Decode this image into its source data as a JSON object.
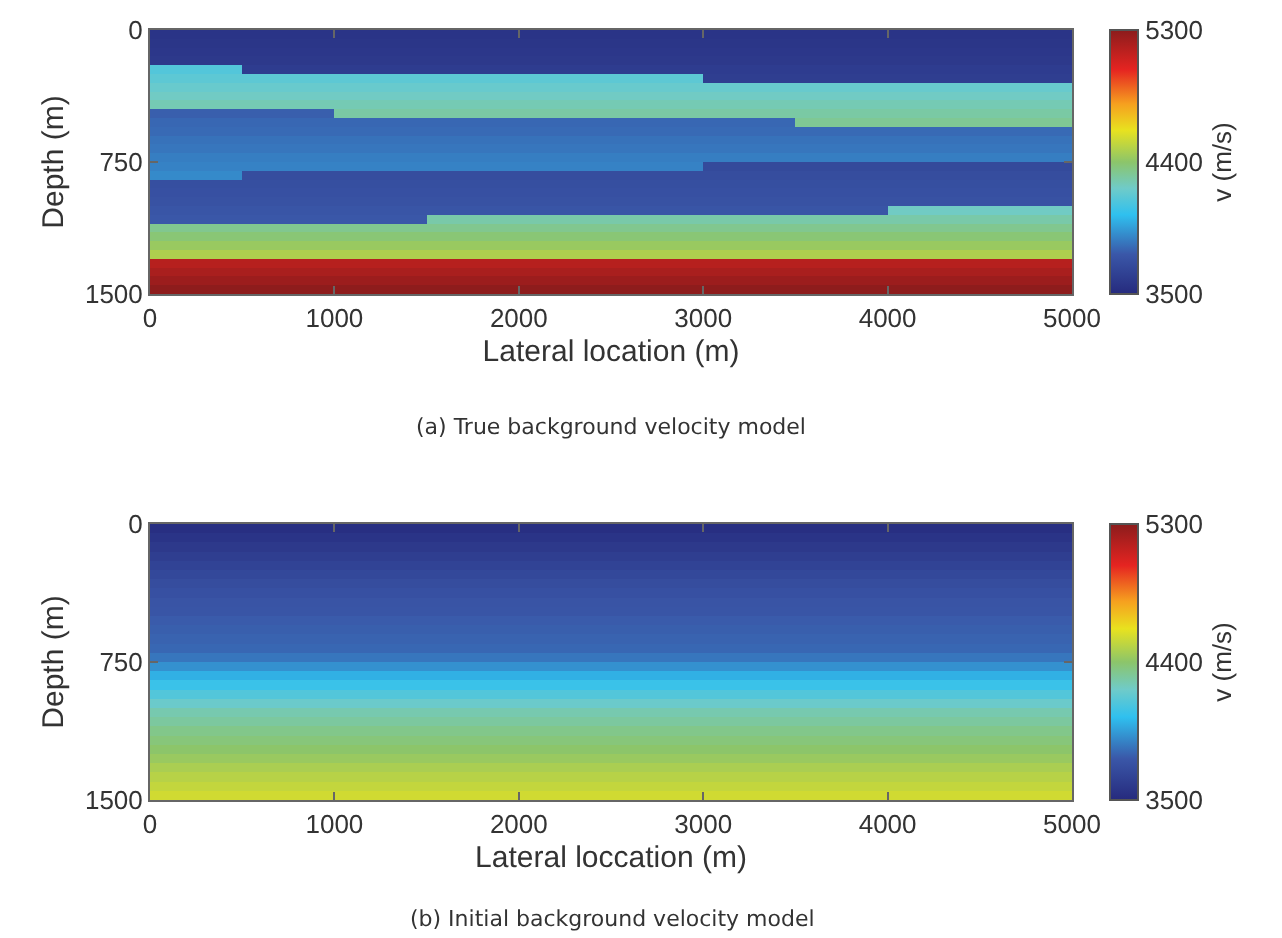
{
  "chart_data": [
    {
      "type": "heatmap",
      "xlabel": "Lateral location (m)",
      "ylabel": "Depth (m)",
      "clabel": "v (m/s)",
      "annotations": [
        "(a) True background velocity model"
      ],
      "x": [
        250,
        750,
        1250,
        1750,
        2250,
        2750,
        3250,
        3750,
        4250,
        4750
      ],
      "y": [
        25,
        75,
        125,
        175,
        225,
        275,
        325,
        375,
        425,
        475,
        525,
        575,
        625,
        675,
        725,
        775,
        825,
        875,
        925,
        975,
        1025,
        1075,
        1125,
        1175,
        1225,
        1275,
        1325,
        1375,
        1425,
        1475
      ],
      "xlim": [
        0,
        5000
      ],
      "xticks": [
        0,
        1000,
        2000,
        3000,
        4000,
        5000
      ],
      "ylim": [
        1500,
        0
      ],
      "yticks": [
        0,
        750,
        1500
      ],
      "clim": [
        3500,
        5300
      ],
      "cticks": [
        3500,
        4400,
        5300
      ],
      "cells": [
        [
          3560,
          3560,
          3560,
          3560,
          3560,
          3560,
          3560,
          3560,
          3560,
          3560
        ],
        [
          3570,
          3570,
          3570,
          3570,
          3570,
          3570,
          3570,
          3570,
          3570,
          3570
        ],
        [
          3580,
          3580,
          3580,
          3580,
          3580,
          3580,
          3580,
          3580,
          3580,
          3580
        ],
        [
          3590,
          3590,
          3590,
          3590,
          3590,
          3590,
          3590,
          3590,
          3590,
          3590
        ],
        [
          4140,
          3610,
          3610,
          3610,
          3610,
          3610,
          3610,
          3610,
          3610,
          3610
        ],
        [
          4170,
          4170,
          4170,
          4170,
          4170,
          4170,
          3620,
          3620,
          3620,
          3620
        ],
        [
          4200,
          4200,
          4200,
          4200,
          4200,
          4200,
          4200,
          4200,
          4200,
          4200
        ],
        [
          4230,
          4230,
          4230,
          4230,
          4230,
          4230,
          4230,
          4230,
          4230,
          4230
        ],
        [
          4260,
          4260,
          4260,
          4260,
          4260,
          4260,
          4260,
          4260,
          4260,
          4260
        ],
        [
          3790,
          3790,
          4290,
          4290,
          4290,
          4290,
          4290,
          4290,
          4290,
          4290
        ],
        [
          3810,
          3810,
          3810,
          3810,
          3810,
          3810,
          3810,
          4320,
          4320,
          4320
        ],
        [
          3820,
          3820,
          3820,
          3820,
          3820,
          3820,
          3820,
          3820,
          3820,
          3820
        ],
        [
          3840,
          3840,
          3840,
          3840,
          3840,
          3840,
          3840,
          3840,
          3840,
          3840
        ],
        [
          3850,
          3850,
          3850,
          3850,
          3850,
          3850,
          3850,
          3850,
          3850,
          3850
        ],
        [
          3870,
          3870,
          3870,
          3870,
          3870,
          3870,
          3870,
          3870,
          3870,
          3870
        ],
        [
          3880,
          3880,
          3880,
          3880,
          3880,
          3880,
          3690,
          3690,
          3690,
          3690
        ],
        [
          3900,
          3710,
          3710,
          3710,
          3710,
          3710,
          3710,
          3710,
          3710,
          3710
        ],
        [
          3720,
          3720,
          3720,
          3720,
          3720,
          3720,
          3720,
          3720,
          3720,
          3720
        ],
        [
          3730,
          3730,
          3730,
          3730,
          3730,
          3730,
          3730,
          3730,
          3730,
          3730
        ],
        [
          3740,
          3740,
          3740,
          3740,
          3740,
          3740,
          3740,
          3740,
          3740,
          3740
        ],
        [
          3760,
          3760,
          3760,
          3760,
          3760,
          3760,
          3760,
          3760,
          4230,
          4230
        ],
        [
          3770,
          3770,
          3770,
          4280,
          4280,
          4280,
          4280,
          4280,
          4280,
          4280
        ],
        [
          4330,
          4330,
          4330,
          4330,
          4330,
          4330,
          4330,
          4330,
          4330,
          4330
        ],
        [
          4380,
          4380,
          4380,
          4380,
          4380,
          4380,
          4380,
          4380,
          4380,
          4380
        ],
        [
          4430,
          4430,
          4430,
          4430,
          4430,
          4430,
          4430,
          4430,
          4430,
          4430
        ],
        [
          4480,
          4480,
          4480,
          4480,
          4480,
          4480,
          4480,
          4480,
          4480,
          4480
        ],
        [
          5170,
          5170,
          5170,
          5170,
          5170,
          5170,
          5170,
          5170,
          5170,
          5170
        ],
        [
          5210,
          5210,
          5210,
          5210,
          5210,
          5210,
          5210,
          5210,
          5210,
          5210
        ],
        [
          5250,
          5250,
          5250,
          5250,
          5250,
          5250,
          5250,
          5250,
          5250,
          5250
        ],
        [
          5290,
          5290,
          5290,
          5290,
          5290,
          5290,
          5290,
          5290,
          5290,
          5290
        ]
      ]
    },
    {
      "type": "heatmap",
      "xlabel": "Lateral loccation (m)",
      "ylabel": "Depth (m)",
      "clabel": "v (m/s)",
      "annotations": [
        "(b) Initial background velocity model"
      ],
      "x": [
        250,
        750,
        1250,
        1750,
        2250,
        2750,
        3250,
        3750,
        4250,
        4750
      ],
      "y": [
        25,
        75,
        125,
        175,
        225,
        275,
        325,
        375,
        425,
        475,
        525,
        575,
        625,
        675,
        725,
        775,
        825,
        875,
        925,
        975,
        1025,
        1075,
        1125,
        1175,
        1225,
        1275,
        1325,
        1375,
        1425,
        1475
      ],
      "xlim": [
        0,
        5000
      ],
      "xticks": [
        0,
        1000,
        2000,
        3000,
        4000,
        5000
      ],
      "ylim": [
        1500,
        0
      ],
      "yticks": [
        0,
        750,
        1500
      ],
      "clim": [
        3500,
        5300
      ],
      "cticks": [
        3500,
        4400,
        5300
      ],
      "cells": [
        [
          3530,
          3530,
          3530,
          3530,
          3530,
          3530,
          3530,
          3530,
          3530,
          3530
        ],
        [
          3560,
          3560,
          3560,
          3560,
          3560,
          3560,
          3560,
          3560,
          3560,
          3560
        ],
        [
          3590,
          3590,
          3590,
          3590,
          3590,
          3590,
          3590,
          3590,
          3590,
          3590
        ],
        [
          3620,
          3620,
          3620,
          3620,
          3620,
          3620,
          3620,
          3620,
          3620,
          3620
        ],
        [
          3650,
          3650,
          3650,
          3650,
          3650,
          3650,
          3650,
          3650,
          3650,
          3650
        ],
        [
          3680,
          3680,
          3680,
          3680,
          3680,
          3680,
          3680,
          3680,
          3680,
          3680
        ],
        [
          3710,
          3710,
          3710,
          3710,
          3710,
          3710,
          3710,
          3710,
          3710,
          3710
        ],
        [
          3730,
          3730,
          3730,
          3730,
          3730,
          3730,
          3730,
          3730,
          3730,
          3730
        ],
        [
          3750,
          3750,
          3750,
          3750,
          3750,
          3750,
          3750,
          3750,
          3750,
          3750
        ],
        [
          3760,
          3760,
          3760,
          3760,
          3760,
          3760,
          3760,
          3760,
          3760,
          3760
        ],
        [
          3780,
          3780,
          3780,
          3780,
          3780,
          3780,
          3780,
          3780,
          3780,
          3780
        ],
        [
          3790,
          3790,
          3790,
          3790,
          3790,
          3790,
          3790,
          3790,
          3790,
          3790
        ],
        [
          3800,
          3800,
          3800,
          3800,
          3800,
          3800,
          3800,
          3800,
          3800,
          3800
        ],
        [
          3810,
          3810,
          3810,
          3810,
          3810,
          3810,
          3810,
          3810,
          3810,
          3810
        ],
        [
          3850,
          3850,
          3850,
          3850,
          3850,
          3850,
          3850,
          3850,
          3850,
          3850
        ],
        [
          3920,
          3920,
          3920,
          3920,
          3920,
          3920,
          3920,
          3920,
          3920,
          3920
        ],
        [
          4000,
          4000,
          4000,
          4000,
          4000,
          4000,
          4000,
          4000,
          4000,
          4000
        ],
        [
          4070,
          4070,
          4070,
          4070,
          4070,
          4070,
          4070,
          4070,
          4070,
          4070
        ],
        [
          4140,
          4140,
          4140,
          4140,
          4140,
          4140,
          4140,
          4140,
          4140,
          4140
        ],
        [
          4210,
          4210,
          4210,
          4210,
          4210,
          4210,
          4210,
          4210,
          4210,
          4210
        ],
        [
          4270,
          4270,
          4270,
          4270,
          4270,
          4270,
          4270,
          4270,
          4270,
          4270
        ],
        [
          4300,
          4300,
          4300,
          4300,
          4300,
          4300,
          4300,
          4300,
          4300,
          4300
        ],
        [
          4340,
          4340,
          4340,
          4340,
          4340,
          4340,
          4340,
          4340,
          4340,
          4340
        ],
        [
          4370,
          4370,
          4370,
          4370,
          4370,
          4370,
          4370,
          4370,
          4370,
          4370
        ],
        [
          4400,
          4400,
          4400,
          4400,
          4400,
          4400,
          4400,
          4400,
          4400,
          4400
        ],
        [
          4430,
          4430,
          4430,
          4430,
          4430,
          4430,
          4430,
          4430,
          4430,
          4430
        ],
        [
          4470,
          4470,
          4470,
          4470,
          4470,
          4470,
          4470,
          4470,
          4470,
          4470
        ],
        [
          4500,
          4500,
          4500,
          4500,
          4500,
          4500,
          4500,
          4500,
          4500,
          4500
        ],
        [
          4530,
          4530,
          4530,
          4530,
          4530,
          4530,
          4530,
          4530,
          4530,
          4530
        ],
        [
          4560,
          4560,
          4560,
          4560,
          4560,
          4560,
          4560,
          4560,
          4560,
          4560
        ]
      ]
    }
  ]
}
